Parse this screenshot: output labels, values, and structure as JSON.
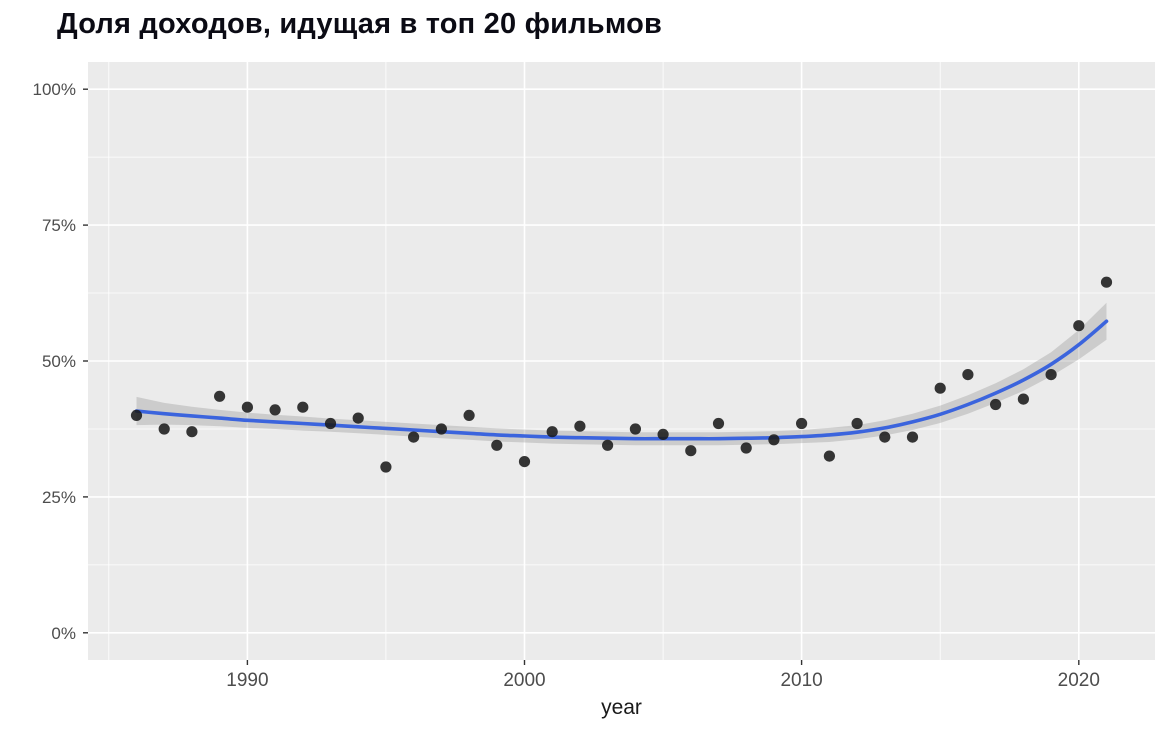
{
  "page": {
    "background": "#ffffff"
  },
  "chart_data": {
    "type": "scatter",
    "title": "Доля доходов, идущая в топ 20 фильмов",
    "xlabel": "year",
    "ylabel": "",
    "legend": "none",
    "grid": true,
    "xlim": [
      1984.25,
      2022.75
    ],
    "ylim": [
      -5,
      105
    ],
    "xticks": {
      "values": [
        1990,
        2000,
        2010,
        2020
      ],
      "labels": [
        "1990",
        "2000",
        "2010",
        "2020"
      ]
    },
    "yticks": {
      "values": [
        0,
        25,
        50,
        75,
        100
      ],
      "labels": [
        "0%",
        "25%",
        "50%",
        "75%",
        "100%"
      ]
    },
    "x_minor_ticks": [
      1985,
      1995,
      2005,
      2015
    ],
    "y_minor_ticks": [
      12.5,
      37.5,
      62.5,
      87.5
    ],
    "x": [
      1986,
      1987,
      1988,
      1989,
      1990,
      1991,
      1992,
      1993,
      1994,
      1995,
      1996,
      1997,
      1998,
      1999,
      2000,
      2001,
      2002,
      2003,
      2004,
      2005,
      2006,
      2007,
      2008,
      2009,
      2010,
      2011,
      2012,
      2013,
      2014,
      2015,
      2016,
      2017,
      2018,
      2019,
      2020,
      2021
    ],
    "y": [
      40,
      37.5,
      37,
      43.5,
      41.5,
      41,
      41.5,
      38.5,
      39.5,
      30.5,
      36,
      37.5,
      40,
      34.5,
      31.5,
      37,
      38,
      34.5,
      37.5,
      36.5,
      33.5,
      38.5,
      34,
      35.5,
      38.5,
      32.5,
      38.5,
      36,
      36,
      45,
      47.5,
      42,
      43,
      47.5,
      56.5,
      64.5
    ],
    "smooth": {
      "name": "loess-trend",
      "y": [
        40.8,
        40.3,
        39.9,
        39.5,
        39.1,
        38.8,
        38.5,
        38.2,
        37.9,
        37.6,
        37.3,
        37.0,
        36.7,
        36.4,
        36.2,
        36.0,
        35.9,
        35.8,
        35.7,
        35.7,
        35.7,
        35.7,
        35.8,
        35.9,
        36.1,
        36.4,
        36.9,
        37.7,
        38.8,
        40.2,
        42.0,
        44.1,
        46.5,
        49.4,
        53.0,
        57.3
      ],
      "ci_halfwidth": [
        2.6,
        2.0,
        1.7,
        1.5,
        1.4,
        1.3,
        1.3,
        1.2,
        1.2,
        1.2,
        1.2,
        1.2,
        1.2,
        1.2,
        1.2,
        1.2,
        1.2,
        1.2,
        1.2,
        1.2,
        1.2,
        1.2,
        1.2,
        1.2,
        1.2,
        1.3,
        1.3,
        1.4,
        1.5,
        1.6,
        1.7,
        1.8,
        2.0,
        2.2,
        2.7,
        3.4
      ]
    },
    "colors": {
      "panel": "#ebebeb",
      "grid_major": "#ffffff",
      "grid_minor": "#ffffff",
      "point": "#1a1a1a",
      "line": "#3b64dd",
      "band": "#9a9a9a",
      "tick_mark": "#333333",
      "tick_label": "#4d4d4d",
      "axis_label": "#1a1a1a",
      "title": "#0b0b14"
    }
  }
}
